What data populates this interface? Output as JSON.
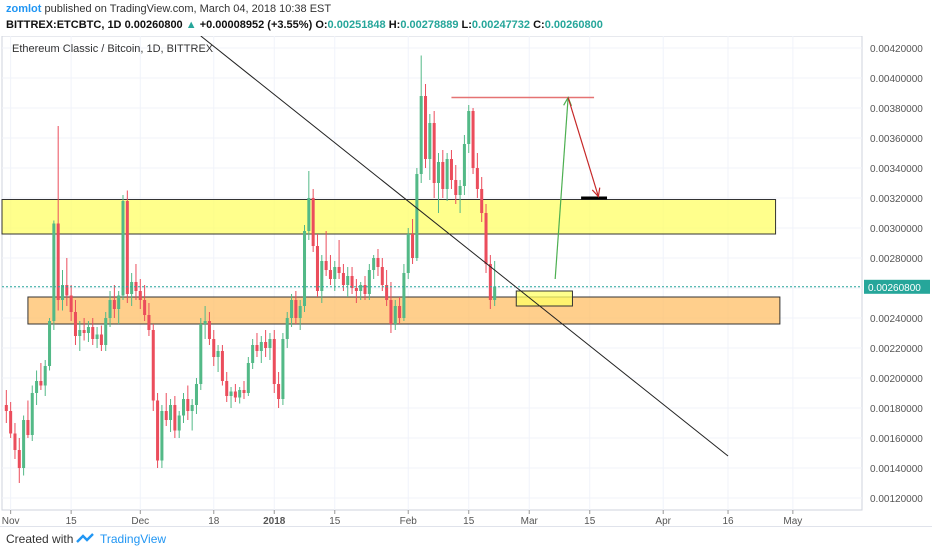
{
  "header": {
    "author": "zomlot",
    "published": "published on TradingView.com, March 04, 2018 10:38 EST",
    "symbol": "BITTREX:ETCBTC, 1D",
    "last": "0.00260800",
    "change_arrow": "▲",
    "change": "+0.00008952 (+3.55%)",
    "o_label": "O:",
    "o_value": "0.00251848",
    "h_label": "H:",
    "h_value": "0.00278889",
    "l_label": "L:",
    "l_value": "0.00247732",
    "c_label": "C:",
    "c_value": "0.00260800"
  },
  "footer": {
    "created": "Created with",
    "brand": "TradingView"
  },
  "colors": {
    "up": "#26a69a",
    "down": "#ef5350",
    "up_soft": "#53b987",
    "down_soft": "#eb4d5c",
    "yellow_zone": "#ffff66",
    "orange_zone": "#ffbf66",
    "price_line": "#26a69a"
  },
  "chart_data": {
    "type": "candlestick",
    "title": "Ethereum Classic / Bitcoin, 1D, BITTREX",
    "ylim": [
      0.00112,
      0.00428
    ],
    "y_ticks": [
      "0.00420000",
      "0.00400000",
      "0.00380000",
      "0.00360000",
      "0.00340000",
      "0.00320000",
      "0.00300000",
      "0.00280000",
      "0.00260000",
      "0.00240000",
      "0.00220000",
      "0.00200000",
      "0.00180000",
      "0.00160000",
      "0.00140000",
      "0.00120000"
    ],
    "x_ticks": [
      {
        "label": "Nov",
        "day": 1
      },
      {
        "label": "15",
        "day": 15
      },
      {
        "label": "Dec",
        "day": 31
      },
      {
        "label": "18",
        "day": 48
      },
      {
        "label": "2018",
        "day": 62
      },
      {
        "label": "15",
        "day": 76
      },
      {
        "label": "Feb",
        "day": 93
      },
      {
        "label": "15",
        "day": 107
      },
      {
        "label": "Mar",
        "day": 121
      },
      {
        "label": "15",
        "day": 135
      },
      {
        "label": "Apr",
        "day": 152
      },
      {
        "label": "16",
        "day": 167
      },
      {
        "label": "May",
        "day": 182
      }
    ],
    "x_range_days": [
      -1,
      198
    ],
    "last_price_label": "0.00260800",
    "last_price": 0.002608,
    "zones": [
      {
        "name": "resistance-zone",
        "color": "yellow",
        "day_start": -1,
        "day_end": 178,
        "y_low": 0.00296,
        "y_high": 0.00319
      },
      {
        "name": "support-zone",
        "color": "orange",
        "day_start": 5,
        "day_end": 179,
        "y_low": 0.00236,
        "y_high": 0.00254
      },
      {
        "name": "entry-box",
        "color": "yellow",
        "day_start": 118,
        "day_end": 131,
        "y_low": 0.00248,
        "y_high": 0.00258
      }
    ],
    "trendline": {
      "from": {
        "day": 45,
        "price": 0.00428
      },
      "to": {
        "day": 167,
        "price": 0.00148
      }
    },
    "top_line": {
      "day_start": 103,
      "day_end": 136,
      "price": 0.00387
    },
    "target_line": {
      "day_start": 133,
      "day_end": 139,
      "price": 0.0032
    },
    "arrow_up": {
      "from": {
        "day": 127,
        "price": 0.00266
      },
      "to": {
        "day": 130,
        "price": 0.00387
      }
    },
    "arrow_down": {
      "from": {
        "day": 130,
        "price": 0.00387
      },
      "to": {
        "day": 137,
        "price": 0.00321
      }
    },
    "candles": [
      {
        "d": 0,
        "o": 0.00182,
        "h": 0.00192,
        "l": 0.0017,
        "c": 0.00178
      },
      {
        "d": 1,
        "o": 0.00178,
        "h": 0.00184,
        "l": 0.0016,
        "c": 0.00163
      },
      {
        "d": 2,
        "o": 0.00163,
        "h": 0.0017,
        "l": 0.00146,
        "c": 0.00152
      },
      {
        "d": 3,
        "o": 0.00152,
        "h": 0.0016,
        "l": 0.0013,
        "c": 0.0014
      },
      {
        "d": 4,
        "o": 0.0014,
        "h": 0.00175,
        "l": 0.00135,
        "c": 0.00172
      },
      {
        "d": 5,
        "o": 0.00172,
        "h": 0.00185,
        "l": 0.0016,
        "c": 0.00162
      },
      {
        "d": 6,
        "o": 0.00162,
        "h": 0.00195,
        "l": 0.00158,
        "c": 0.0019
      },
      {
        "d": 7,
        "o": 0.0019,
        "h": 0.00205,
        "l": 0.00182,
        "c": 0.00198
      },
      {
        "d": 8,
        "o": 0.00198,
        "h": 0.0021,
        "l": 0.00192,
        "c": 0.00195
      },
      {
        "d": 9,
        "o": 0.00195,
        "h": 0.00212,
        "l": 0.00188,
        "c": 0.00208
      },
      {
        "d": 10,
        "o": 0.00208,
        "h": 0.0024,
        "l": 0.00205,
        "c": 0.00238
      },
      {
        "d": 11,
        "o": 0.00238,
        "h": 0.00305,
        "l": 0.00232,
        "c": 0.00303
      },
      {
        "d": 12,
        "o": 0.00303,
        "h": 0.00368,
        "l": 0.00245,
        "c": 0.00252
      },
      {
        "d": 13,
        "o": 0.00252,
        "h": 0.00272,
        "l": 0.00245,
        "c": 0.00262
      },
      {
        "d": 14,
        "o": 0.00262,
        "h": 0.0028,
        "l": 0.00248,
        "c": 0.00255
      },
      {
        "d": 15,
        "o": 0.00255,
        "h": 0.00262,
        "l": 0.00238,
        "c": 0.00244
      },
      {
        "d": 16,
        "o": 0.00244,
        "h": 0.00252,
        "l": 0.00222,
        "c": 0.00228
      },
      {
        "d": 17,
        "o": 0.00228,
        "h": 0.00238,
        "l": 0.00218,
        "c": 0.00232
      },
      {
        "d": 18,
        "o": 0.00232,
        "h": 0.0024,
        "l": 0.00225,
        "c": 0.0023
      },
      {
        "d": 19,
        "o": 0.0023,
        "h": 0.00238,
        "l": 0.00224,
        "c": 0.00234
      },
      {
        "d": 20,
        "o": 0.00234,
        "h": 0.0024,
        "l": 0.00222,
        "c": 0.00226
      },
      {
        "d": 21,
        "o": 0.00226,
        "h": 0.00234,
        "l": 0.0022,
        "c": 0.00229
      },
      {
        "d": 22,
        "o": 0.00229,
        "h": 0.00235,
        "l": 0.00218,
        "c": 0.00222
      },
      {
        "d": 23,
        "o": 0.00222,
        "h": 0.00244,
        "l": 0.00218,
        "c": 0.0024
      },
      {
        "d": 24,
        "o": 0.0024,
        "h": 0.00258,
        "l": 0.00234,
        "c": 0.00252
      },
      {
        "d": 25,
        "o": 0.00252,
        "h": 0.00262,
        "l": 0.0024,
        "c": 0.00246
      },
      {
        "d": 26,
        "o": 0.00246,
        "h": 0.00258,
        "l": 0.00236,
        "c": 0.00255
      },
      {
        "d": 27,
        "o": 0.00255,
        "h": 0.00322,
        "l": 0.00252,
        "c": 0.00318
      },
      {
        "d": 28,
        "o": 0.00318,
        "h": 0.00325,
        "l": 0.0025,
        "c": 0.00256
      },
      {
        "d": 29,
        "o": 0.00256,
        "h": 0.0027,
        "l": 0.00248,
        "c": 0.00264
      },
      {
        "d": 30,
        "o": 0.00264,
        "h": 0.00276,
        "l": 0.00252,
        "c": 0.00258
      },
      {
        "d": 31,
        "o": 0.00258,
        "h": 0.00266,
        "l": 0.00246,
        "c": 0.00252
      },
      {
        "d": 32,
        "o": 0.00252,
        "h": 0.00262,
        "l": 0.00238,
        "c": 0.00242
      },
      {
        "d": 33,
        "o": 0.00242,
        "h": 0.0025,
        "l": 0.00228,
        "c": 0.00232
      },
      {
        "d": 34,
        "o": 0.00232,
        "h": 0.00236,
        "l": 0.00178,
        "c": 0.00185
      },
      {
        "d": 35,
        "o": 0.00185,
        "h": 0.0019,
        "l": 0.0014,
        "c": 0.00145
      },
      {
        "d": 36,
        "o": 0.00145,
        "h": 0.00182,
        "l": 0.0014,
        "c": 0.00178
      },
      {
        "d": 37,
        "o": 0.00178,
        "h": 0.0019,
        "l": 0.00168,
        "c": 0.00172
      },
      {
        "d": 38,
        "o": 0.00172,
        "h": 0.00186,
        "l": 0.00164,
        "c": 0.00182
      },
      {
        "d": 39,
        "o": 0.00182,
        "h": 0.00188,
        "l": 0.0016,
        "c": 0.00165
      },
      {
        "d": 40,
        "o": 0.00165,
        "h": 0.00178,
        "l": 0.0016,
        "c": 0.00175
      },
      {
        "d": 41,
        "o": 0.00175,
        "h": 0.0019,
        "l": 0.0017,
        "c": 0.00186
      },
      {
        "d": 42,
        "o": 0.00186,
        "h": 0.00195,
        "l": 0.00172,
        "c": 0.00178
      },
      {
        "d": 43,
        "o": 0.00178,
        "h": 0.00186,
        "l": 0.00165,
        "c": 0.00182
      },
      {
        "d": 44,
        "o": 0.00182,
        "h": 0.002,
        "l": 0.00176,
        "c": 0.00196
      },
      {
        "d": 45,
        "o": 0.00196,
        "h": 0.0024,
        "l": 0.00192,
        "c": 0.00236
      },
      {
        "d": 46,
        "o": 0.00236,
        "h": 0.00248,
        "l": 0.00226,
        "c": 0.00238
      },
      {
        "d": 47,
        "o": 0.00238,
        "h": 0.00244,
        "l": 0.00222,
        "c": 0.00226
      },
      {
        "d": 48,
        "o": 0.00226,
        "h": 0.00232,
        "l": 0.00208,
        "c": 0.00214
      },
      {
        "d": 49,
        "o": 0.00214,
        "h": 0.00222,
        "l": 0.00204,
        "c": 0.00218
      },
      {
        "d": 50,
        "o": 0.00218,
        "h": 0.00222,
        "l": 0.00195,
        "c": 0.00198
      },
      {
        "d": 51,
        "o": 0.00198,
        "h": 0.00204,
        "l": 0.00184,
        "c": 0.00188
      },
      {
        "d": 52,
        "o": 0.00188,
        "h": 0.00194,
        "l": 0.0018,
        "c": 0.00191
      },
      {
        "d": 53,
        "o": 0.00191,
        "h": 0.00196,
        "l": 0.00184,
        "c": 0.00187
      },
      {
        "d": 54,
        "o": 0.00187,
        "h": 0.00194,
        "l": 0.00183,
        "c": 0.00192
      },
      {
        "d": 55,
        "o": 0.00192,
        "h": 0.00198,
        "l": 0.00186,
        "c": 0.0019
      },
      {
        "d": 56,
        "o": 0.0019,
        "h": 0.00214,
        "l": 0.00188,
        "c": 0.0021
      },
      {
        "d": 57,
        "o": 0.0021,
        "h": 0.00226,
        "l": 0.00206,
        "c": 0.00222
      },
      {
        "d": 58,
        "o": 0.00222,
        "h": 0.0023,
        "l": 0.00214,
        "c": 0.00218
      },
      {
        "d": 59,
        "o": 0.00218,
        "h": 0.00228,
        "l": 0.0021,
        "c": 0.00224
      },
      {
        "d": 60,
        "o": 0.00224,
        "h": 0.00232,
        "l": 0.00214,
        "c": 0.0022
      },
      {
        "d": 61,
        "o": 0.0022,
        "h": 0.0023,
        "l": 0.00212,
        "c": 0.00226
      },
      {
        "d": 62,
        "o": 0.00226,
        "h": 0.00232,
        "l": 0.0019,
        "c": 0.00196
      },
      {
        "d": 63,
        "o": 0.00196,
        "h": 0.00204,
        "l": 0.0018,
        "c": 0.00186
      },
      {
        "d": 64,
        "o": 0.00186,
        "h": 0.0023,
        "l": 0.00182,
        "c": 0.00226
      },
      {
        "d": 65,
        "o": 0.00226,
        "h": 0.00244,
        "l": 0.0022,
        "c": 0.0024
      },
      {
        "d": 66,
        "o": 0.0024,
        "h": 0.00256,
        "l": 0.00234,
        "c": 0.00252
      },
      {
        "d": 67,
        "o": 0.00252,
        "h": 0.00258,
        "l": 0.00236,
        "c": 0.0024
      },
      {
        "d": 68,
        "o": 0.0024,
        "h": 0.00252,
        "l": 0.00232,
        "c": 0.00248
      },
      {
        "d": 69,
        "o": 0.00248,
        "h": 0.00302,
        "l": 0.00244,
        "c": 0.00298
      },
      {
        "d": 70,
        "o": 0.00298,
        "h": 0.00338,
        "l": 0.00292,
        "c": 0.0032
      },
      {
        "d": 71,
        "o": 0.0032,
        "h": 0.00326,
        "l": 0.00284,
        "c": 0.00288
      },
      {
        "d": 72,
        "o": 0.00288,
        "h": 0.00296,
        "l": 0.00254,
        "c": 0.00258
      },
      {
        "d": 73,
        "o": 0.00258,
        "h": 0.00282,
        "l": 0.0025,
        "c": 0.00278
      },
      {
        "d": 74,
        "o": 0.00278,
        "h": 0.00298,
        "l": 0.00268,
        "c": 0.00272
      },
      {
        "d": 75,
        "o": 0.00272,
        "h": 0.00282,
        "l": 0.00262,
        "c": 0.00266
      },
      {
        "d": 76,
        "o": 0.00266,
        "h": 0.00278,
        "l": 0.00258,
        "c": 0.00274
      },
      {
        "d": 77,
        "o": 0.00274,
        "h": 0.00292,
        "l": 0.00266,
        "c": 0.0027
      },
      {
        "d": 78,
        "o": 0.0027,
        "h": 0.00276,
        "l": 0.00258,
        "c": 0.00262
      },
      {
        "d": 79,
        "o": 0.00262,
        "h": 0.00274,
        "l": 0.00254,
        "c": 0.00268
      },
      {
        "d": 80,
        "o": 0.00268,
        "h": 0.00274,
        "l": 0.00256,
        "c": 0.0026
      },
      {
        "d": 81,
        "o": 0.0026,
        "h": 0.00266,
        "l": 0.0025,
        "c": 0.00258
      },
      {
        "d": 82,
        "o": 0.00258,
        "h": 0.00264,
        "l": 0.00252,
        "c": 0.00262
      },
      {
        "d": 83,
        "o": 0.00262,
        "h": 0.00268,
        "l": 0.00252,
        "c": 0.00256
      },
      {
        "d": 84,
        "o": 0.00256,
        "h": 0.00276,
        "l": 0.00252,
        "c": 0.00272
      },
      {
        "d": 85,
        "o": 0.00272,
        "h": 0.00282,
        "l": 0.00266,
        "c": 0.0028
      },
      {
        "d": 86,
        "o": 0.0028,
        "h": 0.00286,
        "l": 0.00268,
        "c": 0.00274
      },
      {
        "d": 87,
        "o": 0.00274,
        "h": 0.0028,
        "l": 0.00258,
        "c": 0.00262
      },
      {
        "d": 88,
        "o": 0.00262,
        "h": 0.00272,
        "l": 0.00248,
        "c": 0.00252
      },
      {
        "d": 89,
        "o": 0.00252,
        "h": 0.00264,
        "l": 0.0023,
        "c": 0.00236
      },
      {
        "d": 90,
        "o": 0.00236,
        "h": 0.00252,
        "l": 0.00232,
        "c": 0.00248
      },
      {
        "d": 91,
        "o": 0.00248,
        "h": 0.00254,
        "l": 0.00236,
        "c": 0.0024
      },
      {
        "d": 92,
        "o": 0.0024,
        "h": 0.00276,
        "l": 0.00238,
        "c": 0.0027
      },
      {
        "d": 93,
        "o": 0.0027,
        "h": 0.003,
        "l": 0.00266,
        "c": 0.00296
      },
      {
        "d": 94,
        "o": 0.00296,
        "h": 0.00306,
        "l": 0.00276,
        "c": 0.0028
      },
      {
        "d": 95,
        "o": 0.0028,
        "h": 0.0034,
        "l": 0.00278,
        "c": 0.00336
      },
      {
        "d": 96,
        "o": 0.00336,
        "h": 0.00415,
        "l": 0.0033,
        "c": 0.00388
      },
      {
        "d": 97,
        "o": 0.00388,
        "h": 0.00396,
        "l": 0.0034,
        "c": 0.00346
      },
      {
        "d": 98,
        "o": 0.00346,
        "h": 0.00376,
        "l": 0.00332,
        "c": 0.0037
      },
      {
        "d": 99,
        "o": 0.0037,
        "h": 0.00378,
        "l": 0.0032,
        "c": 0.0033
      },
      {
        "d": 100,
        "o": 0.0033,
        "h": 0.0035,
        "l": 0.0031,
        "c": 0.00344
      },
      {
        "d": 101,
        "o": 0.00344,
        "h": 0.00352,
        "l": 0.0032,
        "c": 0.00326
      },
      {
        "d": 102,
        "o": 0.00326,
        "h": 0.0035,
        "l": 0.00318,
        "c": 0.00346
      },
      {
        "d": 103,
        "o": 0.00346,
        "h": 0.00352,
        "l": 0.00326,
        "c": 0.00332
      },
      {
        "d": 104,
        "o": 0.00332,
        "h": 0.00342,
        "l": 0.00316,
        "c": 0.00322
      },
      {
        "d": 105,
        "o": 0.00322,
        "h": 0.00332,
        "l": 0.0031,
        "c": 0.00328
      },
      {
        "d": 106,
        "o": 0.00328,
        "h": 0.00362,
        "l": 0.00322,
        "c": 0.00356
      },
      {
        "d": 107,
        "o": 0.00356,
        "h": 0.00382,
        "l": 0.0035,
        "c": 0.00378
      },
      {
        "d": 108,
        "o": 0.00378,
        "h": 0.0038,
        "l": 0.00336,
        "c": 0.0034
      },
      {
        "d": 109,
        "o": 0.0034,
        "h": 0.0035,
        "l": 0.0032,
        "c": 0.00326
      },
      {
        "d": 110,
        "o": 0.00326,
        "h": 0.00334,
        "l": 0.00304,
        "c": 0.0031
      },
      {
        "d": 111,
        "o": 0.0031,
        "h": 0.00316,
        "l": 0.0027,
        "c": 0.00276
      },
      {
        "d": 112,
        "o": 0.00276,
        "h": 0.00282,
        "l": 0.00246,
        "c": 0.00252
      },
      {
        "d": 113,
        "o": 0.00252,
        "h": 0.00278,
        "l": 0.00248,
        "c": 0.00261
      }
    ]
  }
}
